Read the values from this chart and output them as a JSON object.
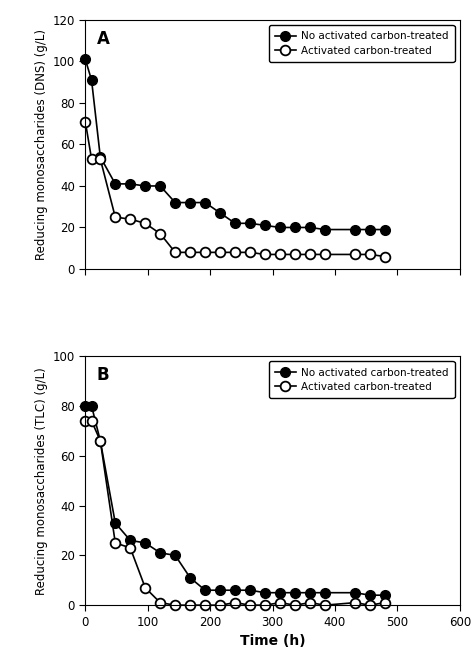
{
  "panel_A": {
    "label": "A",
    "ylabel": "Reducing monosaccharides (DNS) (g/L)",
    "ylim": [
      0,
      120
    ],
    "yticks": [
      0,
      20,
      40,
      60,
      80,
      100,
      120
    ],
    "filled_x": [
      0,
      10,
      24,
      48,
      72,
      96,
      120,
      144,
      168,
      192,
      216,
      240,
      264,
      288,
      312,
      336,
      360,
      384,
      432,
      456,
      480
    ],
    "filled_y": [
      101,
      91,
      54,
      41,
      41,
      40,
      40,
      32,
      32,
      32,
      27,
      22,
      22,
      21,
      20,
      20,
      20,
      19,
      19,
      19,
      19
    ],
    "open_x": [
      0,
      10,
      24,
      48,
      72,
      96,
      120,
      144,
      168,
      192,
      216,
      240,
      264,
      288,
      312,
      336,
      360,
      384,
      432,
      456,
      480
    ],
    "open_y": [
      71,
      53,
      53,
      25,
      24,
      22,
      17,
      8,
      8,
      8,
      8,
      8,
      8,
      7,
      7,
      7,
      7,
      7,
      7,
      7,
      6
    ]
  },
  "panel_B": {
    "label": "B",
    "ylabel": "Reducing monosaccharides (TLC) (g/L)",
    "ylim": [
      0,
      100
    ],
    "yticks": [
      0,
      20,
      40,
      60,
      80,
      100
    ],
    "filled_x": [
      0,
      10,
      24,
      48,
      72,
      96,
      120,
      144,
      168,
      192,
      216,
      240,
      264,
      288,
      312,
      336,
      360,
      384,
      432,
      456,
      480
    ],
    "filled_y": [
      80,
      80,
      66,
      33,
      26,
      25,
      21,
      20,
      11,
      6,
      6,
      6,
      6,
      5,
      5,
      5,
      5,
      5,
      5,
      4,
      4
    ],
    "open_x": [
      0,
      10,
      24,
      48,
      72,
      96,
      120,
      144,
      168,
      192,
      216,
      240,
      264,
      288,
      312,
      336,
      360,
      384,
      432,
      456,
      480
    ],
    "open_y": [
      74,
      74,
      66,
      25,
      23,
      7,
      1,
      0,
      0,
      0,
      0,
      1,
      0,
      0,
      1,
      0,
      1,
      0,
      1,
      0,
      1
    ]
  },
  "xlabel": "Time (h)",
  "xlim": [
    0,
    600
  ],
  "xticks": [
    0,
    100,
    200,
    300,
    400,
    500,
    600
  ],
  "legend_filled": "No activated carbon-treated",
  "legend_open": "Activated carbon-treated",
  "marker_size": 7,
  "line_width": 1.2,
  "bg_color": "#ffffff",
  "line_color": "#000000"
}
